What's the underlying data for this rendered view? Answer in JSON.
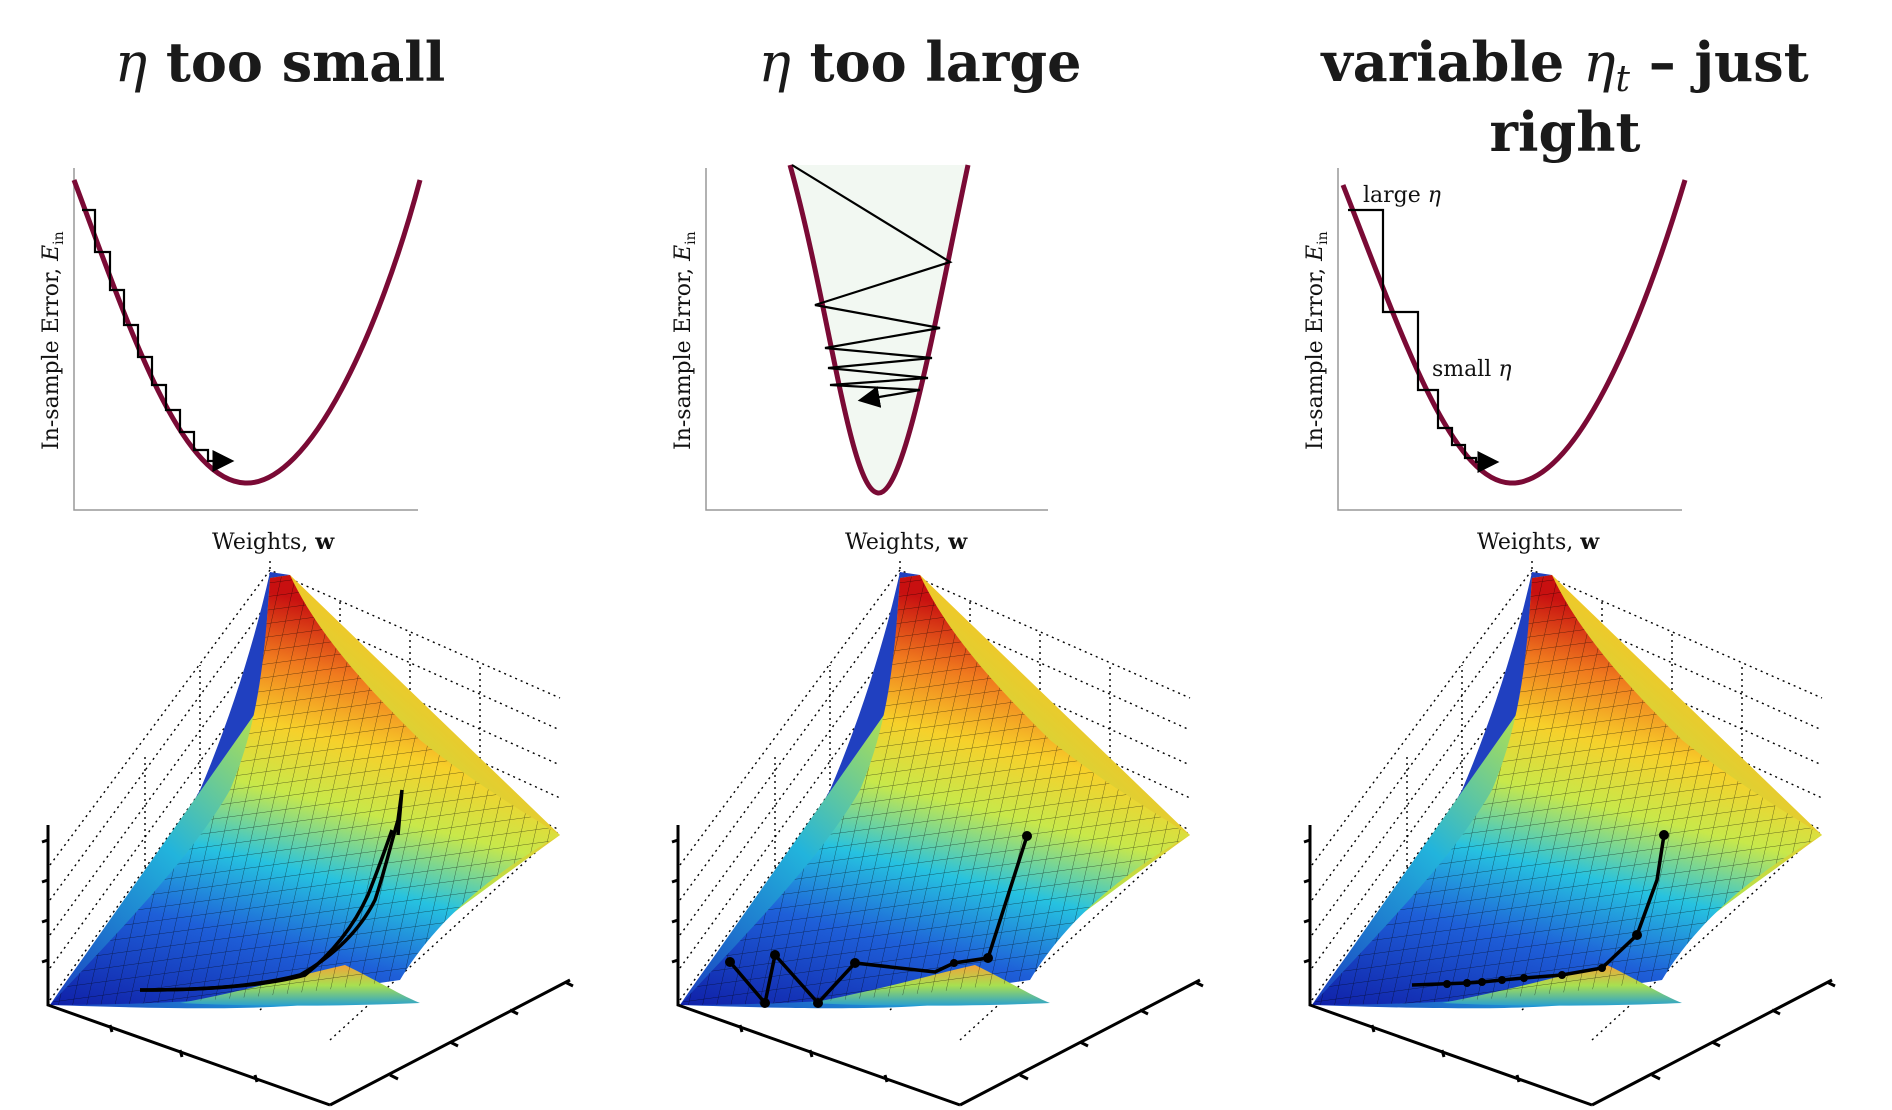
{
  "panels": [
    {
      "title_prefix": "η",
      "title_rest": " too small",
      "xlabel_text": "Weights, ",
      "xlabel_bold": "w",
      "ylabel_text": "In-sample Error, ",
      "ylabel_sym": "E",
      "ylabel_sub": "in"
    },
    {
      "title_prefix": "η",
      "title_rest": " too large",
      "xlabel_text": "Weights, ",
      "xlabel_bold": "w",
      "ylabel_text": "In-sample Error, ",
      "ylabel_sym": "E",
      "ylabel_sub": "in"
    },
    {
      "title_word": "variable ",
      "title_prefix": "η",
      "title_sub": "t",
      "title_rest": " – just right",
      "xlabel_text": "Weights, ",
      "xlabel_bold": "w",
      "ylabel_text": "In-sample Error, ",
      "ylabel_sym": "E",
      "ylabel_sub": "in",
      "anno_large": "large ",
      "anno_small": "small ",
      "anno_eta": "η"
    }
  ],
  "colors": {
    "curve": "#7a0a35",
    "path": "#000000",
    "axis": "#555555"
  }
}
